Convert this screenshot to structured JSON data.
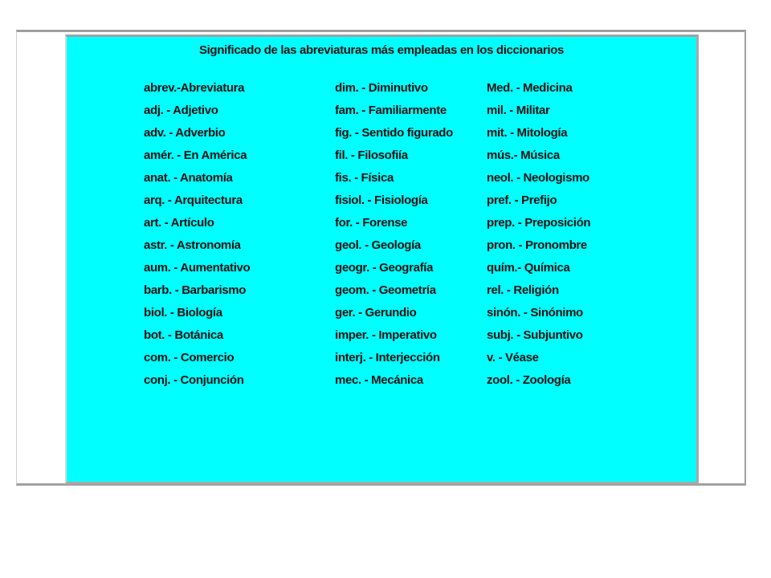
{
  "title": "Significado de las abreviaturas más empleadas en los diccionarios",
  "columns": [
    [
      "abrev.-Abreviatura",
      "adj. - Adjetivo",
      "adv. - Adverbio",
      "amér. - En América",
      "anat. - Anatomía",
      "arq. - Arquitectura",
      "art. - Artículo",
      "astr. - Astronomía",
      "aum. - Aumentativo",
      "barb. - Barbarismo",
      "biol. - Biología",
      "bot. - Botánica",
      "com. - Comercio",
      "conj. - Conjunción"
    ],
    [
      "dim. - Diminutivo",
      "fam. - Familiarmente",
      "fig. - Sentido figurado",
      "fil. - Filosofiía",
      "fis. - Física",
      "fisiol. - Fisiología",
      "for. - Forense",
      "geol. - Geología",
      "geogr. - Geografía",
      "geom. - Geometría",
      "ger. - Gerundio",
      "imper. - Imperativo",
      "interj. - Interjección",
      "mec. - Mecánica"
    ],
    [
      "Med. - Medicina",
      "mil. - Militar",
      "mit. - Mitología",
      "mús.- Música",
      "neol. - Neologismo",
      "pref. - Prefijo",
      "prep. - Preposición",
      "pron. - Pronombre",
      "quím.- Química",
      "rel. - Religión",
      "sinón. - Sinónimo",
      "subj. - Subjuntivo",
      "v. - Véase",
      "zool. - Zoología"
    ]
  ],
  "colors": {
    "panel_background": "#00ffff",
    "border": "#a0a0a0"
  }
}
